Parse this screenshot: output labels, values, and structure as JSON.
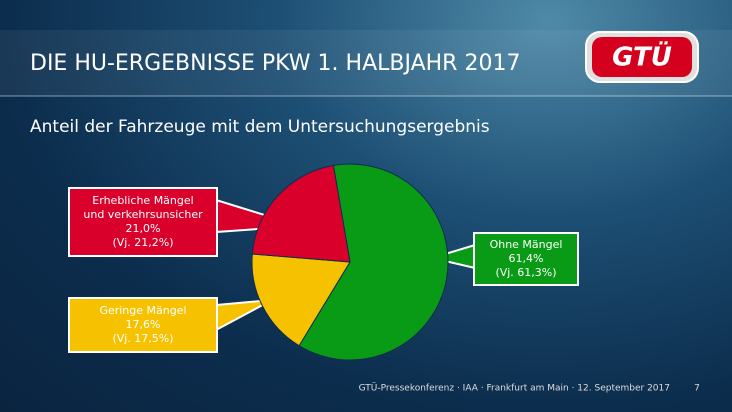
{
  "header": {
    "title": "DIE HU-ERGEBNISSE PKW 1. HALBJAHR 2017",
    "logo": "GTÜ"
  },
  "chart_data": {
    "type": "pie",
    "title": "Anteil der Fahrzeuge mit dem Untersuchungsergebnis",
    "categories": [
      "Ohne Mängel",
      "Geringe Mängel",
      "Erhebliche Mängel und verkehrsunsicher"
    ],
    "values": [
      61.4,
      17.6,
      21.0
    ],
    "value_labels": [
      "61,4%",
      "17,6%",
      "21,0%"
    ],
    "previous_year_labels": [
      "(Vj. 61,3%)",
      "(Vj. 17,5%)",
      "(Vj. 21,2%)"
    ],
    "colors": [
      "#0a9b16",
      "#f6c200",
      "#d9002b"
    ]
  },
  "footer": {
    "text": "GTÜ-Pressekonferenz · IAA · Frankfurt am Main · 12. September 2017",
    "page": "7"
  }
}
